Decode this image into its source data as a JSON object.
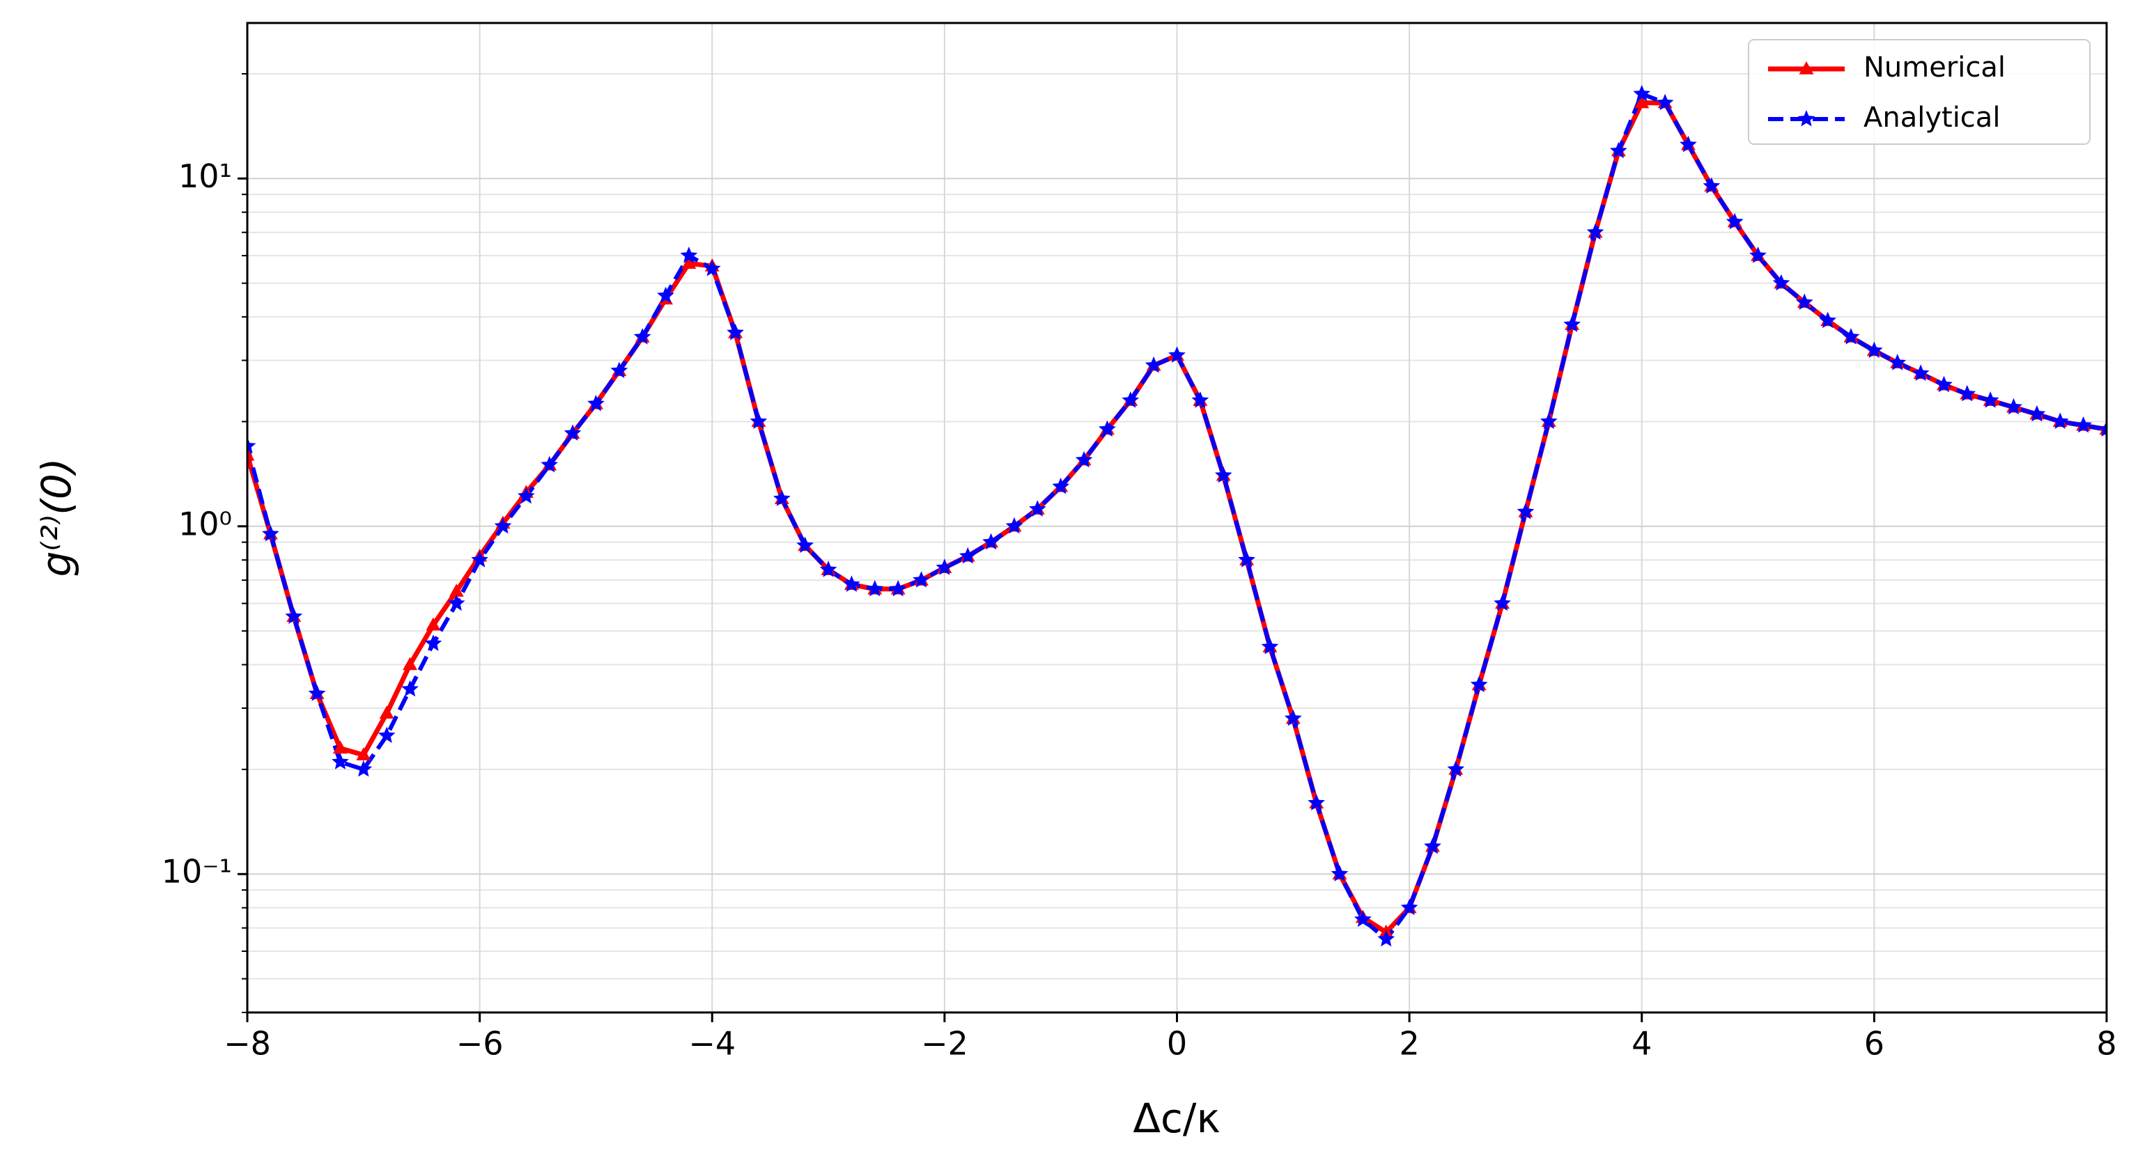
{
  "chart_data": {
    "type": "line",
    "x_label": "Δc/κ",
    "y_label": "g⁽²⁾(0)",
    "log_y": true,
    "grid": true,
    "minor_grid": true,
    "legend": "upper right",
    "xlim": [
      -8,
      8
    ],
    "ylim": [
      0.04,
      28
    ],
    "xticks": [
      {
        "value": -8,
        "label": "−8"
      },
      {
        "value": -6,
        "label": "−6"
      },
      {
        "value": -4,
        "label": "−4"
      },
      {
        "value": -2,
        "label": "−2"
      },
      0,
      2,
      4,
      6,
      8
    ],
    "yticks": [
      {
        "value": 0.1,
        "label": "10⁻¹"
      },
      {
        "value": 1,
        "label": "10⁰"
      },
      {
        "value": 10,
        "label": "10¹"
      }
    ],
    "x": [
      -8,
      -7.8,
      -7.6,
      -7.4,
      -7.2,
      -7,
      -6.8,
      -6.6,
      -6.4,
      -6.2,
      -6,
      -5.8,
      -5.6,
      -5.4,
      -5.2,
      -5,
      -4.8,
      -4.6,
      -4.4,
      -4.2,
      -4,
      -3.8,
      -3.6,
      -3.4,
      -3.2,
      -3,
      -2.8,
      -2.6,
      -2.4,
      -2.2,
      -2,
      -1.8,
      -1.6,
      -1.4,
      -1.2,
      -1,
      -0.8,
      -0.6,
      -0.4,
      -0.2,
      0,
      0.2,
      0.4,
      0.6,
      0.8,
      1,
      1.2,
      1.4,
      1.6,
      1.8,
      2,
      2.2,
      2.4,
      2.6,
      2.8,
      3,
      3.2,
      3.4,
      3.6,
      3.8,
      4,
      4.2,
      4.4,
      4.6,
      4.8,
      5,
      5.2,
      5.4,
      5.6,
      5.8,
      6,
      6.2,
      6.4,
      6.6,
      6.8,
      7,
      7.2,
      7.4,
      7.6,
      7.8,
      8
    ],
    "series": [
      {
        "name": "Numerical",
        "color": "#ff0000",
        "marker": "triangle",
        "dashed": false,
        "values": [
          1.6,
          0.95,
          0.55,
          0.33,
          0.23,
          0.22,
          0.29,
          0.4,
          0.52,
          0.65,
          0.82,
          1.02,
          1.25,
          1.5,
          1.85,
          2.25,
          2.8,
          3.5,
          4.5,
          5.7,
          5.6,
          3.6,
          2.0,
          1.2,
          0.88,
          0.75,
          0.68,
          0.66,
          0.66,
          0.7,
          0.76,
          0.82,
          0.9,
          1.0,
          1.12,
          1.3,
          1.55,
          1.9,
          2.3,
          2.9,
          3.1,
          2.3,
          1.4,
          0.8,
          0.45,
          0.28,
          0.16,
          0.1,
          0.075,
          0.068,
          0.08,
          0.12,
          0.2,
          0.35,
          0.6,
          1.1,
          2.0,
          3.8,
          7.0,
          12,
          16.5,
          16.5,
          12.5,
          9.5,
          7.5,
          6.0,
          5.0,
          4.4,
          3.9,
          3.5,
          3.2,
          2.95,
          2.75,
          2.55,
          2.4,
          2.3,
          2.2,
          2.1,
          2.0,
          1.95,
          1.9
        ]
      },
      {
        "name": "Analytical",
        "color": "#0000ff",
        "marker": "star",
        "dashed": true,
        "values": [
          1.7,
          0.95,
          0.55,
          0.33,
          0.21,
          0.2,
          0.25,
          0.34,
          0.46,
          0.6,
          0.8,
          1.0,
          1.22,
          1.5,
          1.85,
          2.25,
          2.8,
          3.5,
          4.6,
          6.0,
          5.5,
          3.6,
          2.0,
          1.2,
          0.88,
          0.75,
          0.68,
          0.66,
          0.66,
          0.7,
          0.76,
          0.82,
          0.9,
          1.0,
          1.12,
          1.3,
          1.55,
          1.9,
          2.3,
          2.9,
          3.1,
          2.3,
          1.4,
          0.8,
          0.45,
          0.28,
          0.16,
          0.1,
          0.074,
          0.065,
          0.08,
          0.12,
          0.2,
          0.35,
          0.6,
          1.1,
          2.0,
          3.8,
          7.0,
          12,
          17.5,
          16.5,
          12.5,
          9.5,
          7.5,
          6.0,
          5.0,
          4.4,
          3.9,
          3.5,
          3.2,
          2.95,
          2.75,
          2.55,
          2.4,
          2.3,
          2.2,
          2.1,
          2.0,
          1.95,
          1.9
        ]
      }
    ]
  }
}
